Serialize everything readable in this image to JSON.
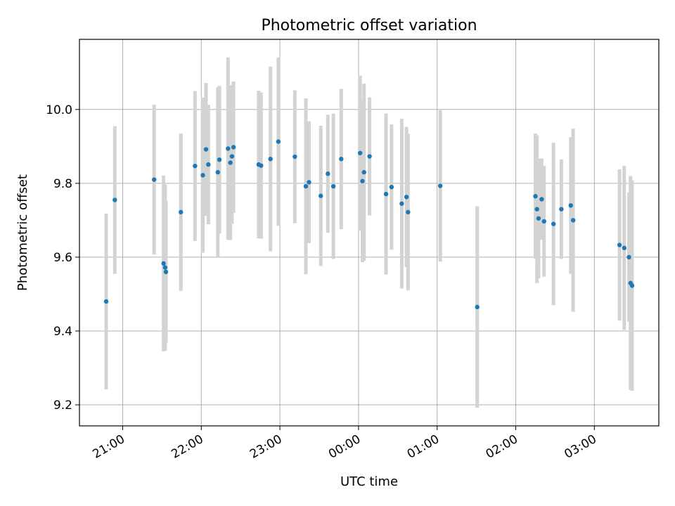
{
  "chart_data": {
    "type": "scatter",
    "title": "Photometric offset variation",
    "xlabel": "UTC time",
    "ylabel": "Photometric offset",
    "x_unit": "hours since 00:00 UTC",
    "xlim": [
      -3.55,
      3.82
    ],
    "ylim": [
      9.143,
      10.19
    ],
    "grid": true,
    "x_ticks": [
      {
        "value": -3,
        "label": "21:00"
      },
      {
        "value": -2,
        "label": "22:00"
      },
      {
        "value": -1,
        "label": "23:00"
      },
      {
        "value": 0,
        "label": "00:00"
      },
      {
        "value": 1,
        "label": "01:00"
      },
      {
        "value": 2,
        "label": "02:00"
      },
      {
        "value": 3,
        "label": "03:00"
      }
    ],
    "y_ticks": [
      {
        "value": 9.2,
        "label": "9.2"
      },
      {
        "value": 9.4,
        "label": "9.4"
      },
      {
        "value": 9.6,
        "label": "9.6"
      },
      {
        "value": 9.8,
        "label": "9.8"
      },
      {
        "value": 10.0,
        "label": "10.0"
      }
    ],
    "colors": {
      "point": "#1f77b4",
      "errorbar": "#d3d3d3",
      "grid": "#b0b0b0"
    },
    "points": [
      {
        "x": -3.21,
        "y": 9.48,
        "err": 0.238
      },
      {
        "x": -3.1,
        "y": 9.755,
        "err": 0.2
      },
      {
        "x": -2.6,
        "y": 9.81,
        "err": 0.203
      },
      {
        "x": -2.48,
        "y": 9.583,
        "err": 0.238
      },
      {
        "x": -2.46,
        "y": 9.572,
        "err": 0.225
      },
      {
        "x": -2.45,
        "y": 9.56,
        "err": 0.192
      },
      {
        "x": -2.26,
        "y": 9.722,
        "err": 0.213
      },
      {
        "x": -2.08,
        "y": 9.847,
        "err": 0.203
      },
      {
        "x": -1.98,
        "y": 9.822,
        "err": 0.21
      },
      {
        "x": -1.94,
        "y": 9.892,
        "err": 0.18
      },
      {
        "x": -1.91,
        "y": 9.851,
        "err": 0.162
      },
      {
        "x": -1.79,
        "y": 9.83,
        "err": 0.23
      },
      {
        "x": -1.77,
        "y": 9.864,
        "err": 0.2
      },
      {
        "x": -1.66,
        "y": 9.894,
        "err": 0.247
      },
      {
        "x": -1.63,
        "y": 9.856,
        "err": 0.21
      },
      {
        "x": -1.61,
        "y": 9.873,
        "err": 0.183
      },
      {
        "x": -1.59,
        "y": 9.898,
        "err": 0.178
      },
      {
        "x": -1.27,
        "y": 9.851,
        "err": 0.2
      },
      {
        "x": -1.24,
        "y": 9.848,
        "err": 0.198
      },
      {
        "x": -1.12,
        "y": 9.866,
        "err": 0.25
      },
      {
        "x": -1.02,
        "y": 9.913,
        "err": 0.228
      },
      {
        "x": -0.81,
        "y": 9.872,
        "err": 0.18
      },
      {
        "x": -0.67,
        "y": 9.792,
        "err": 0.238
      },
      {
        "x": -0.63,
        "y": 9.803,
        "err": 0.165
      },
      {
        "x": -0.48,
        "y": 9.766,
        "err": 0.19
      },
      {
        "x": -0.39,
        "y": 9.826,
        "err": 0.16
      },
      {
        "x": -0.32,
        "y": 9.792,
        "err": 0.197
      },
      {
        "x": -0.22,
        "y": 9.866,
        "err": 0.19
      },
      {
        "x": 0.02,
        "y": 9.882,
        "err": 0.21
      },
      {
        "x": 0.05,
        "y": 9.806,
        "err": 0.22
      },
      {
        "x": 0.07,
        "y": 9.83,
        "err": 0.24
      },
      {
        "x": 0.14,
        "y": 9.873,
        "err": 0.16
      },
      {
        "x": 0.35,
        "y": 9.771,
        "err": 0.218
      },
      {
        "x": 0.42,
        "y": 9.79,
        "err": 0.17
      },
      {
        "x": 0.55,
        "y": 9.745,
        "err": 0.23
      },
      {
        "x": 0.61,
        "y": 9.763,
        "err": 0.19
      },
      {
        "x": 0.63,
        "y": 9.722,
        "err": 0.212
      },
      {
        "x": 1.04,
        "y": 9.793,
        "err": 0.205
      },
      {
        "x": 1.51,
        "y": 9.465,
        "err": 0.273
      },
      {
        "x": 2.25,
        "y": 9.765,
        "err": 0.17
      },
      {
        "x": 2.27,
        "y": 9.73,
        "err": 0.2
      },
      {
        "x": 2.29,
        "y": 9.705,
        "err": 0.162
      },
      {
        "x": 2.33,
        "y": 9.757,
        "err": 0.11
      },
      {
        "x": 2.36,
        "y": 9.697,
        "err": 0.15
      },
      {
        "x": 2.48,
        "y": 9.69,
        "err": 0.22
      },
      {
        "x": 2.58,
        "y": 9.73,
        "err": 0.135
      },
      {
        "x": 2.7,
        "y": 9.74,
        "err": 0.185
      },
      {
        "x": 2.73,
        "y": 9.7,
        "err": 0.248
      },
      {
        "x": 3.32,
        "y": 9.633,
        "err": 0.205
      },
      {
        "x": 3.38,
        "y": 9.625,
        "err": 0.222
      },
      {
        "x": 3.44,
        "y": 9.6,
        "err": 0.175
      },
      {
        "x": 3.46,
        "y": 9.53,
        "err": 0.29
      },
      {
        "x": 3.48,
        "y": 9.523,
        "err": 0.285
      }
    ]
  }
}
